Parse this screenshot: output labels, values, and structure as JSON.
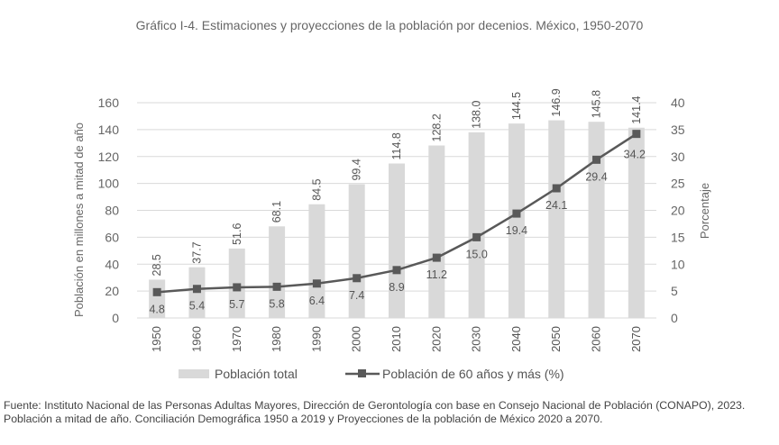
{
  "title": "Gráfico I-4. Estimaciones y proyecciones de la población por decenios. México, 1950-2070",
  "source": "Fuente: Instituto Nacional de las Personas Adultas Mayores, Dirección de Gerontología con base en Consejo Nacional de Población (CONAPO), 2023. Población a mitad de año. Conciliación Demográfica 1950 a 2019 y Proyecciones de la población de México 2020 a 2070.",
  "chart_data": {
    "type": "bar",
    "categories": [
      "1950",
      "1960",
      "1970",
      "1980",
      "1990",
      "2000",
      "2010",
      "2020",
      "2030",
      "2040",
      "2050",
      "2060",
      "2070"
    ],
    "series": [
      {
        "name": "Población total",
        "type": "bar",
        "axis": "left",
        "values": [
          28.5,
          37.7,
          51.6,
          68.1,
          84.5,
          99.4,
          114.8,
          128.2,
          138.0,
          144.5,
          146.9,
          145.8,
          141.4
        ],
        "labels": [
          "28.5",
          "37.7",
          "51.6",
          "68.1",
          "84.5",
          "99.4",
          "114.8",
          "128.2",
          "138.0",
          "144.5",
          "146.9",
          "145.8",
          "141.4"
        ],
        "color": "#d9d9d9"
      },
      {
        "name": "Población de 60 años y más (%)",
        "type": "line",
        "axis": "right",
        "values": [
          4.8,
          5.4,
          5.7,
          5.8,
          6.4,
          7.4,
          8.9,
          11.2,
          15.0,
          19.4,
          24.1,
          29.4,
          34.2
        ],
        "labels": [
          "4.8",
          "5.4",
          "5.7",
          "5.8",
          "6.4",
          "7.4",
          "8.9",
          "11.2",
          "15.0",
          "19.4",
          "24.1",
          "29.4",
          "34.2"
        ],
        "color": "#595959"
      }
    ],
    "ylabel": "Población en millones a mitad de año",
    "y2label": "Porcentaje",
    "ylim": [
      0,
      160
    ],
    "y2lim": [
      0,
      40
    ],
    "yticks": [
      "0",
      "20",
      "40",
      "60",
      "80",
      "100",
      "120",
      "140",
      "160"
    ],
    "y2ticks": [
      "0",
      "5",
      "10",
      "15",
      "20",
      "25",
      "30",
      "35",
      "40"
    ],
    "grid": true,
    "legend_position": "bottom"
  }
}
